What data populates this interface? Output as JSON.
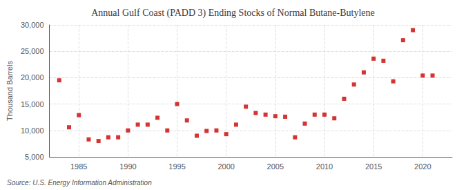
{
  "chart_data": {
    "type": "scatter",
    "title": "Annual Gulf Coast (PADD 3) Ending Stocks of Normal Butane-Butylene",
    "ylabel": "Thousand Barrels",
    "source": "Source: U.S. Energy Information Administration",
    "x": [
      1983,
      1984,
      1985,
      1986,
      1987,
      1988,
      1989,
      1990,
      1991,
      1992,
      1993,
      1994,
      1995,
      1996,
      1997,
      1998,
      1999,
      2000,
      2001,
      2002,
      2003,
      2004,
      2005,
      2006,
      2007,
      2008,
      2009,
      2010,
      2011,
      2012,
      2013,
      2014,
      2015,
      2016,
      2017,
      2018,
      2019,
      2020,
      2021
    ],
    "values": [
      19500,
      10600,
      12900,
      8300,
      8000,
      8700,
      8700,
      10000,
      11100,
      11100,
      12400,
      10000,
      15000,
      11900,
      9000,
      9900,
      10000,
      9300,
      11100,
      14500,
      13300,
      13000,
      12700,
      12600,
      8700,
      11300,
      13000,
      13000,
      12300,
      16000,
      18700,
      21000,
      23600,
      23200,
      19300,
      27100,
      29000,
      20400,
      20400
    ],
    "color": "#cc0000",
    "marker": "square",
    "xlim": [
      1982,
      2023
    ],
    "ylim": [
      5000,
      30000
    ],
    "xticks": [
      1985,
      1990,
      1995,
      2000,
      2005,
      2010,
      2015,
      2020
    ],
    "yticks": [
      {
        "value": 5000,
        "label": "5,000"
      },
      {
        "value": 10000,
        "label": "10,000"
      },
      {
        "value": 15000,
        "label": "15,000"
      },
      {
        "value": 20000,
        "label": "20,000"
      },
      {
        "value": 25000,
        "label": "25,000"
      },
      {
        "value": 30000,
        "label": "30,000"
      }
    ],
    "grid": true
  }
}
